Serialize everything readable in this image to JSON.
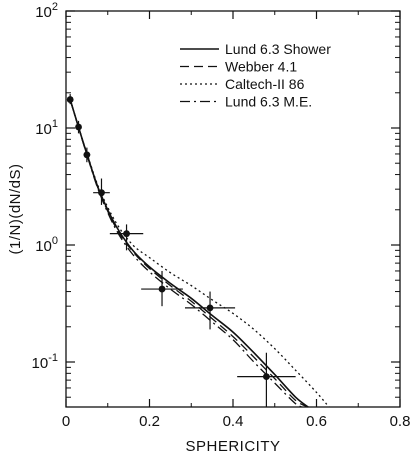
{
  "chart_data": {
    "type": "line",
    "xlabel": "SPHERICITY",
    "ylabel": "(1/N)(dN/dS)",
    "xlim": [
      0,
      0.8
    ],
    "ylim": [
      0.04,
      100
    ],
    "yscale": "log",
    "grid": false,
    "legend_position": "top-right",
    "x_ticks": [
      {
        "value": 0,
        "label": "0"
      },
      {
        "value": 0.2,
        "label": "0.2"
      },
      {
        "value": 0.4,
        "label": "0.4"
      },
      {
        "value": 0.6,
        "label": "0.6"
      },
      {
        "value": 0.8,
        "label": "0.8"
      }
    ],
    "y_ticks": [
      {
        "value": 0.1,
        "base": "10",
        "exp": "-1"
      },
      {
        "value": 1,
        "base": "10",
        "exp": "0"
      },
      {
        "value": 10,
        "base": "10",
        "exp": "1"
      },
      {
        "value": 100,
        "base": "10",
        "exp": "2"
      }
    ],
    "series": [
      {
        "name": "Lund 6.3 Shower",
        "style": "solid",
        "x": [
          0.01,
          0.03,
          0.05,
          0.08,
          0.12,
          0.16,
          0.2,
          0.25,
          0.3,
          0.35,
          0.4,
          0.45,
          0.5,
          0.55,
          0.58
        ],
        "y": [
          17.5,
          10.2,
          6.0,
          2.9,
          1.45,
          0.9,
          0.65,
          0.47,
          0.35,
          0.25,
          0.18,
          0.12,
          0.078,
          0.05,
          0.04
        ]
      },
      {
        "name": "Webber 4.1",
        "style": "dashed",
        "x": [
          0.01,
          0.03,
          0.05,
          0.08,
          0.12,
          0.16,
          0.2,
          0.25,
          0.3,
          0.35,
          0.4,
          0.45,
          0.5,
          0.55,
          0.58
        ],
        "y": [
          17.5,
          10.2,
          6.0,
          2.85,
          1.4,
          0.88,
          0.63,
          0.45,
          0.33,
          0.235,
          0.165,
          0.11,
          0.072,
          0.047,
          0.04
        ]
      },
      {
        "name": "Caltech-II 86",
        "style": "dotted",
        "x": [
          0.01,
          0.03,
          0.05,
          0.08,
          0.12,
          0.16,
          0.2,
          0.25,
          0.3,
          0.35,
          0.4,
          0.45,
          0.5,
          0.55,
          0.6,
          0.63
        ],
        "y": [
          17.5,
          10.2,
          6.1,
          3.0,
          1.55,
          1.0,
          0.78,
          0.58,
          0.45,
          0.34,
          0.26,
          0.19,
          0.13,
          0.085,
          0.055,
          0.04
        ]
      },
      {
        "name": "Lund 6.3 M.E.",
        "style": "dashdot",
        "x": [
          0.01,
          0.03,
          0.05,
          0.08,
          0.12,
          0.16,
          0.2,
          0.25,
          0.3,
          0.35,
          0.4,
          0.45,
          0.5,
          0.55,
          0.57
        ],
        "y": [
          17.5,
          10.1,
          5.9,
          2.8,
          1.35,
          0.83,
          0.59,
          0.42,
          0.31,
          0.22,
          0.155,
          0.1,
          0.066,
          0.044,
          0.04
        ]
      }
    ],
    "data_points": [
      {
        "x": 0.01,
        "y": 17.5,
        "xerr": 0.005,
        "yerr_low": 16.0,
        "yerr_high": 19.5
      },
      {
        "x": 0.03,
        "y": 10.2,
        "xerr": 0.007,
        "yerr_low": 9.0,
        "yerr_high": 11.5
      },
      {
        "x": 0.05,
        "y": 5.9,
        "xerr": 0.008,
        "yerr_low": 5.1,
        "yerr_high": 6.8
      },
      {
        "x": 0.085,
        "y": 2.8,
        "xerr": 0.02,
        "yerr_low": 2.2,
        "yerr_high": 3.7
      },
      {
        "x": 0.145,
        "y": 1.25,
        "xerr": 0.04,
        "yerr_low": 0.9,
        "yerr_high": 1.5
      },
      {
        "x": 0.23,
        "y": 0.42,
        "xerr": 0.05,
        "yerr_low": 0.3,
        "yerr_high": 0.6
      },
      {
        "x": 0.345,
        "y": 0.29,
        "xerr": 0.06,
        "yerr_low": 0.19,
        "yerr_high": 0.4
      },
      {
        "x": 0.48,
        "y": 0.075,
        "xerr": 0.07,
        "yerr_low": 0.04,
        "yerr_high": 0.12
      }
    ]
  }
}
